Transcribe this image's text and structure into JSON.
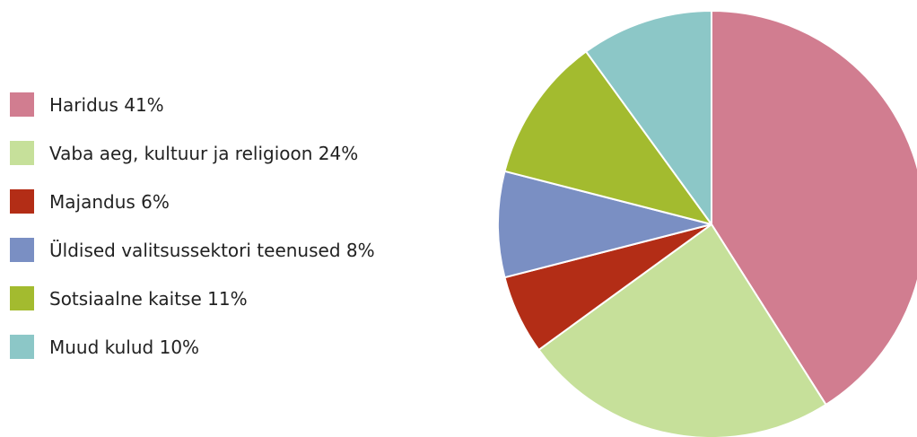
{
  "chart_data": {
    "type": "pie",
    "start_angle_deg": 0,
    "direction": "clockwise",
    "legend_position": "left",
    "slices": [
      {
        "label": "Haridus 41%",
        "value": 41,
        "color": "#d17d90"
      },
      {
        "label": "Vaba aeg, kultuur ja religioon 24%",
        "value": 24,
        "color": "#c6e09a"
      },
      {
        "label": "Majandus 6%",
        "value": 6,
        "color": "#b32d16"
      },
      {
        "label": "Üldised valitsussektori teenused 8%",
        "value": 8,
        "color": "#7a8fc3"
      },
      {
        "label": "Sotsiaalne kaitse 11%",
        "value": 11,
        "color": "#a3bb2f"
      },
      {
        "label": "Muud kulud 10%",
        "value": 10,
        "color": "#8cc7c7"
      }
    ]
  }
}
